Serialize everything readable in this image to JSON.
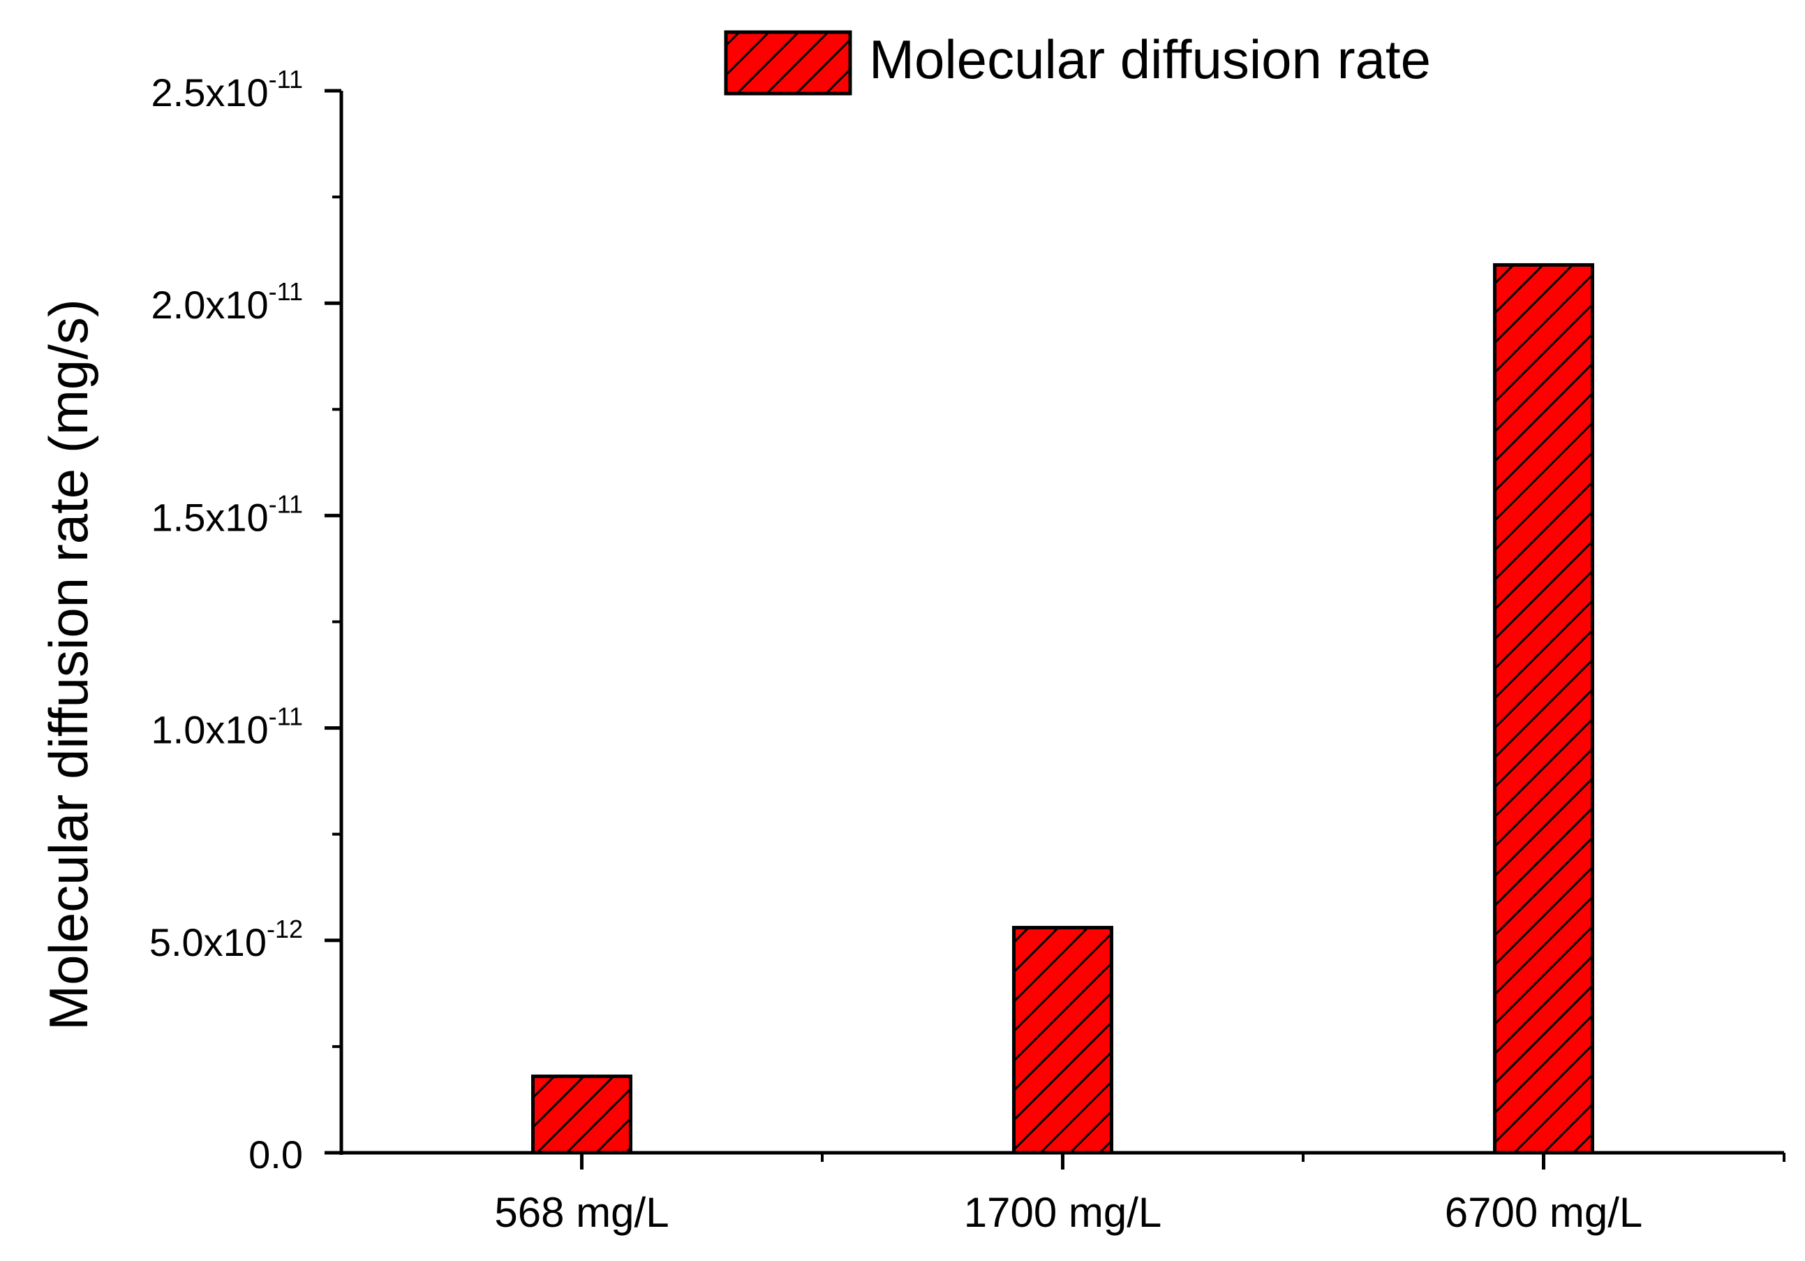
{
  "chart_data": {
    "type": "bar",
    "title": "",
    "xlabel": "",
    "ylabel": "Molecular diffusion rate (mg/s)",
    "categories": [
      "568 mg/L",
      "1700 mg/L",
      "6700 mg/L"
    ],
    "series": [
      {
        "name": "Molecular diffusion rate",
        "values": [
          1.8e-12,
          5.3e-12,
          2.09e-11
        ],
        "color": "#ff0000",
        "hatch": "forward-diagonal"
      }
    ],
    "ylim": [
      0,
      2.5e-11
    ],
    "yticks": [
      {
        "value": 0,
        "mantissa": "0.0",
        "exponent": ""
      },
      {
        "value": 5e-12,
        "mantissa": "5.0x10",
        "exponent": "-12"
      },
      {
        "value": 1e-11,
        "mantissa": "1.0x10",
        "exponent": "-11"
      },
      {
        "value": 1.5e-11,
        "mantissa": "1.5x10",
        "exponent": "-11"
      },
      {
        "value": 2e-11,
        "mantissa": "2.0x10",
        "exponent": "-11"
      },
      {
        "value": 2.5e-11,
        "mantissa": "2.5x10",
        "exponent": "-11"
      }
    ],
    "legend": {
      "position": "top-center",
      "label": "Molecular diffusion rate"
    },
    "grid": false
  }
}
